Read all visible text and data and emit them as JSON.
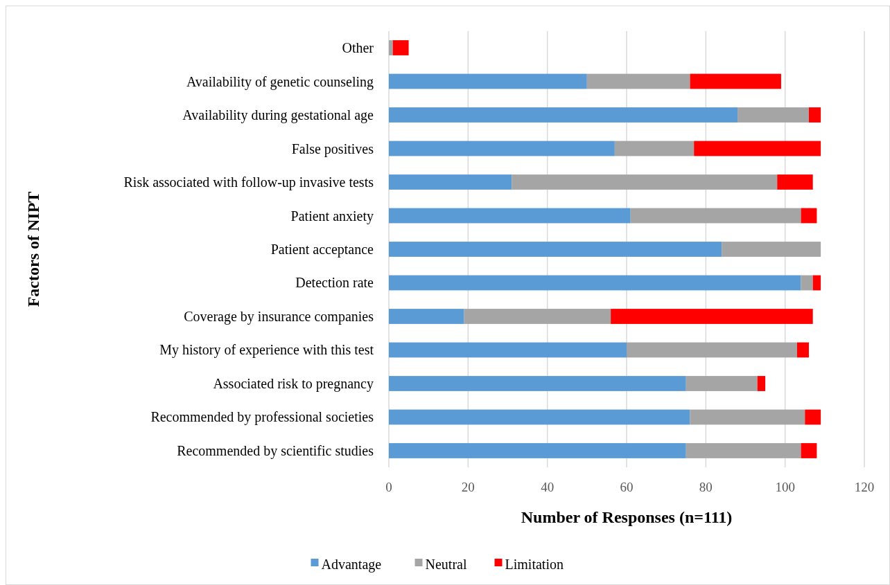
{
  "chart_data": {
    "type": "bar",
    "orientation": "horizontal",
    "stacked": true,
    "xlabel": "Number of Responses (n=111)",
    "ylabel": "Factors of NIPT",
    "categories": [
      "Other",
      "Availability of genetic counseling",
      "Availability during gestational age",
      "False positives",
      "Risk associated with follow-up invasive tests",
      "Patient anxiety",
      "Patient acceptance",
      "Detection rate",
      "Coverage by insurance companies",
      "My history of experience with this test",
      "Associated risk to pregnancy",
      "Recommended by professional societies",
      "Recommended by scientific studies"
    ],
    "series": [
      {
        "name": "Advantage",
        "color": "#5b9bd5",
        "values": [
          0,
          50,
          88,
          57,
          31,
          61,
          84,
          104,
          19,
          60,
          75,
          76,
          75
        ]
      },
      {
        "name": "Neutral",
        "color": "#a5a5a5",
        "values": [
          1,
          26,
          18,
          20,
          67,
          43,
          25,
          3,
          37,
          43,
          18,
          29,
          29
        ]
      },
      {
        "name": "Limitation",
        "color": "#ff0000",
        "values": [
          4,
          23,
          3,
          32,
          9,
          4,
          0,
          2,
          51,
          3,
          2,
          4,
          4
        ]
      }
    ],
    "xlim": [
      0,
      120
    ],
    "xticks": [
      0,
      20,
      40,
      60,
      80,
      100,
      120
    ],
    "grid": "x",
    "legend": "bottom"
  }
}
